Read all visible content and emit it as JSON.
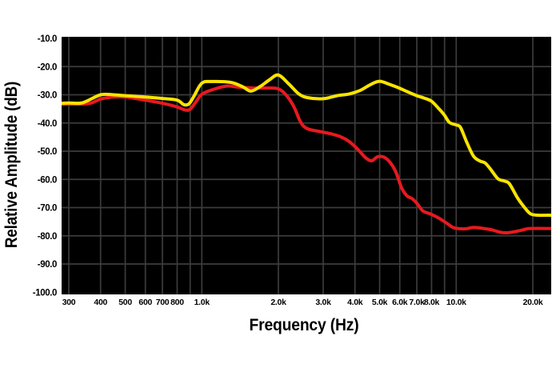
{
  "chart_data": {
    "type": "line",
    "title": "",
    "xlabel": "Frequency (Hz)",
    "ylabel": "Relative Amplitude (dB)",
    "x_scale": "log",
    "x_range_hz": [
      281,
      23600
    ],
    "y_range_db": [
      -100,
      -10
    ],
    "grid": true,
    "legend": "none",
    "background": "#000000",
    "grid_color": "#3c3c3c",
    "text_color": "#000000",
    "x_ticks": [
      {
        "hz": 300,
        "label": "300"
      },
      {
        "hz": 400,
        "label": "400"
      },
      {
        "hz": 500,
        "label": "500"
      },
      {
        "hz": 600,
        "label": "600"
      },
      {
        "hz": 700,
        "label": "700"
      },
      {
        "hz": 800,
        "label": "800"
      },
      {
        "hz": 900,
        "label": ""
      },
      {
        "hz": 1000,
        "label": "1.0k"
      },
      {
        "hz": 2000,
        "label": "2.0k"
      },
      {
        "hz": 3000,
        "label": "3.0k"
      },
      {
        "hz": 4000,
        "label": "4.0k"
      },
      {
        "hz": 5000,
        "label": "5.0k"
      },
      {
        "hz": 6000,
        "label": "6.0k"
      },
      {
        "hz": 7000,
        "label": "7.0k"
      },
      {
        "hz": 8000,
        "label": "8.0k"
      },
      {
        "hz": 9000,
        "label": ""
      },
      {
        "hz": 10000,
        "label": "10.0k"
      },
      {
        "hz": 20000,
        "label": "20.0k"
      }
    ],
    "y_ticks": [
      {
        "db": -10,
        "label": "-10.0"
      },
      {
        "db": -20,
        "label": "-20.0"
      },
      {
        "db": -30,
        "label": "-30.0"
      },
      {
        "db": -40,
        "label": "-40.0"
      },
      {
        "db": -50,
        "label": "-50.0"
      },
      {
        "db": -60,
        "label": "-60.0"
      },
      {
        "db": -70,
        "label": "-70.0"
      },
      {
        "db": -80,
        "label": "-80.0"
      },
      {
        "db": -90,
        "label": "-90.0"
      },
      {
        "db": -100,
        "label": "-100.0"
      }
    ],
    "series": [
      {
        "name": "red-curve",
        "color": "#e8191f",
        "points": [
          [
            281,
            -33.4
          ],
          [
            300,
            -33.3
          ],
          [
            360,
            -33.1
          ],
          [
            400,
            -31.5
          ],
          [
            450,
            -30.8
          ],
          [
            500,
            -30.8
          ],
          [
            600,
            -31.9
          ],
          [
            700,
            -33.0
          ],
          [
            800,
            -34.3
          ],
          [
            860,
            -35.4
          ],
          [
            900,
            -35.1
          ],
          [
            950,
            -32.4
          ],
          [
            1000,
            -29.8
          ],
          [
            1100,
            -28.2
          ],
          [
            1250,
            -26.9
          ],
          [
            1400,
            -27.3
          ],
          [
            1600,
            -27.6
          ],
          [
            1800,
            -27.6
          ],
          [
            2000,
            -27.9
          ],
          [
            2150,
            -30.2
          ],
          [
            2300,
            -34.2
          ],
          [
            2450,
            -39.8
          ],
          [
            2600,
            -42.0
          ],
          [
            2900,
            -43.0
          ],
          [
            3200,
            -43.8
          ],
          [
            3500,
            -44.8
          ],
          [
            3800,
            -46.6
          ],
          [
            4100,
            -49.3
          ],
          [
            4400,
            -52.3
          ],
          [
            4650,
            -53.4
          ],
          [
            4900,
            -52.0
          ],
          [
            5200,
            -52.1
          ],
          [
            5500,
            -54.0
          ],
          [
            5800,
            -57.5
          ],
          [
            6100,
            -63.0
          ],
          [
            6400,
            -65.8
          ],
          [
            6700,
            -66.8
          ],
          [
            7000,
            -68.4
          ],
          [
            7400,
            -71.2
          ],
          [
            7900,
            -72.2
          ],
          [
            8500,
            -73.6
          ],
          [
            9100,
            -75.3
          ],
          [
            9700,
            -77.0
          ],
          [
            10300,
            -77.5
          ],
          [
            11000,
            -77.5
          ],
          [
            11700,
            -77.0
          ],
          [
            12800,
            -77.4
          ],
          [
            13800,
            -77.9
          ],
          [
            15000,
            -78.8
          ],
          [
            16000,
            -78.9
          ],
          [
            17300,
            -78.4
          ],
          [
            18500,
            -77.8
          ],
          [
            19500,
            -77.4
          ],
          [
            23600,
            -77.4
          ]
        ]
      },
      {
        "name": "yellow-curve",
        "color": "#f8e400",
        "points": [
          [
            281,
            -33.0
          ],
          [
            300,
            -32.9
          ],
          [
            340,
            -32.8
          ],
          [
            400,
            -30.0
          ],
          [
            450,
            -30.0
          ],
          [
            500,
            -30.3
          ],
          [
            600,
            -30.8
          ],
          [
            700,
            -31.3
          ],
          [
            800,
            -31.9
          ],
          [
            850,
            -33.5
          ],
          [
            890,
            -33.2
          ],
          [
            930,
            -30.6
          ],
          [
            1000,
            -25.9
          ],
          [
            1100,
            -25.3
          ],
          [
            1300,
            -25.6
          ],
          [
            1450,
            -27.2
          ],
          [
            1560,
            -28.7
          ],
          [
            1700,
            -27.0
          ],
          [
            1850,
            -24.6
          ],
          [
            2000,
            -23.0
          ],
          [
            2200,
            -26.2
          ],
          [
            2400,
            -29.6
          ],
          [
            2600,
            -31.0
          ],
          [
            3000,
            -31.4
          ],
          [
            3400,
            -30.3
          ],
          [
            3800,
            -29.7
          ],
          [
            4200,
            -28.4
          ],
          [
            4600,
            -26.4
          ],
          [
            5000,
            -25.2
          ],
          [
            5500,
            -26.4
          ],
          [
            6000,
            -27.7
          ],
          [
            6500,
            -29.1
          ],
          [
            7000,
            -30.3
          ],
          [
            7500,
            -31.2
          ],
          [
            8000,
            -32.3
          ],
          [
            8600,
            -35.2
          ],
          [
            9000,
            -37.3
          ],
          [
            9400,
            -39.8
          ],
          [
            10000,
            -40.7
          ],
          [
            10400,
            -41.6
          ],
          [
            11000,
            -46.8
          ],
          [
            11700,
            -51.8
          ],
          [
            12400,
            -53.5
          ],
          [
            13000,
            -54.2
          ],
          [
            13700,
            -56.6
          ],
          [
            14600,
            -59.8
          ],
          [
            15500,
            -60.6
          ],
          [
            16200,
            -61.6
          ],
          [
            17400,
            -66.5
          ],
          [
            18500,
            -69.8
          ],
          [
            19600,
            -72.2
          ],
          [
            21000,
            -72.7
          ],
          [
            23600,
            -72.7
          ]
        ]
      }
    ]
  }
}
